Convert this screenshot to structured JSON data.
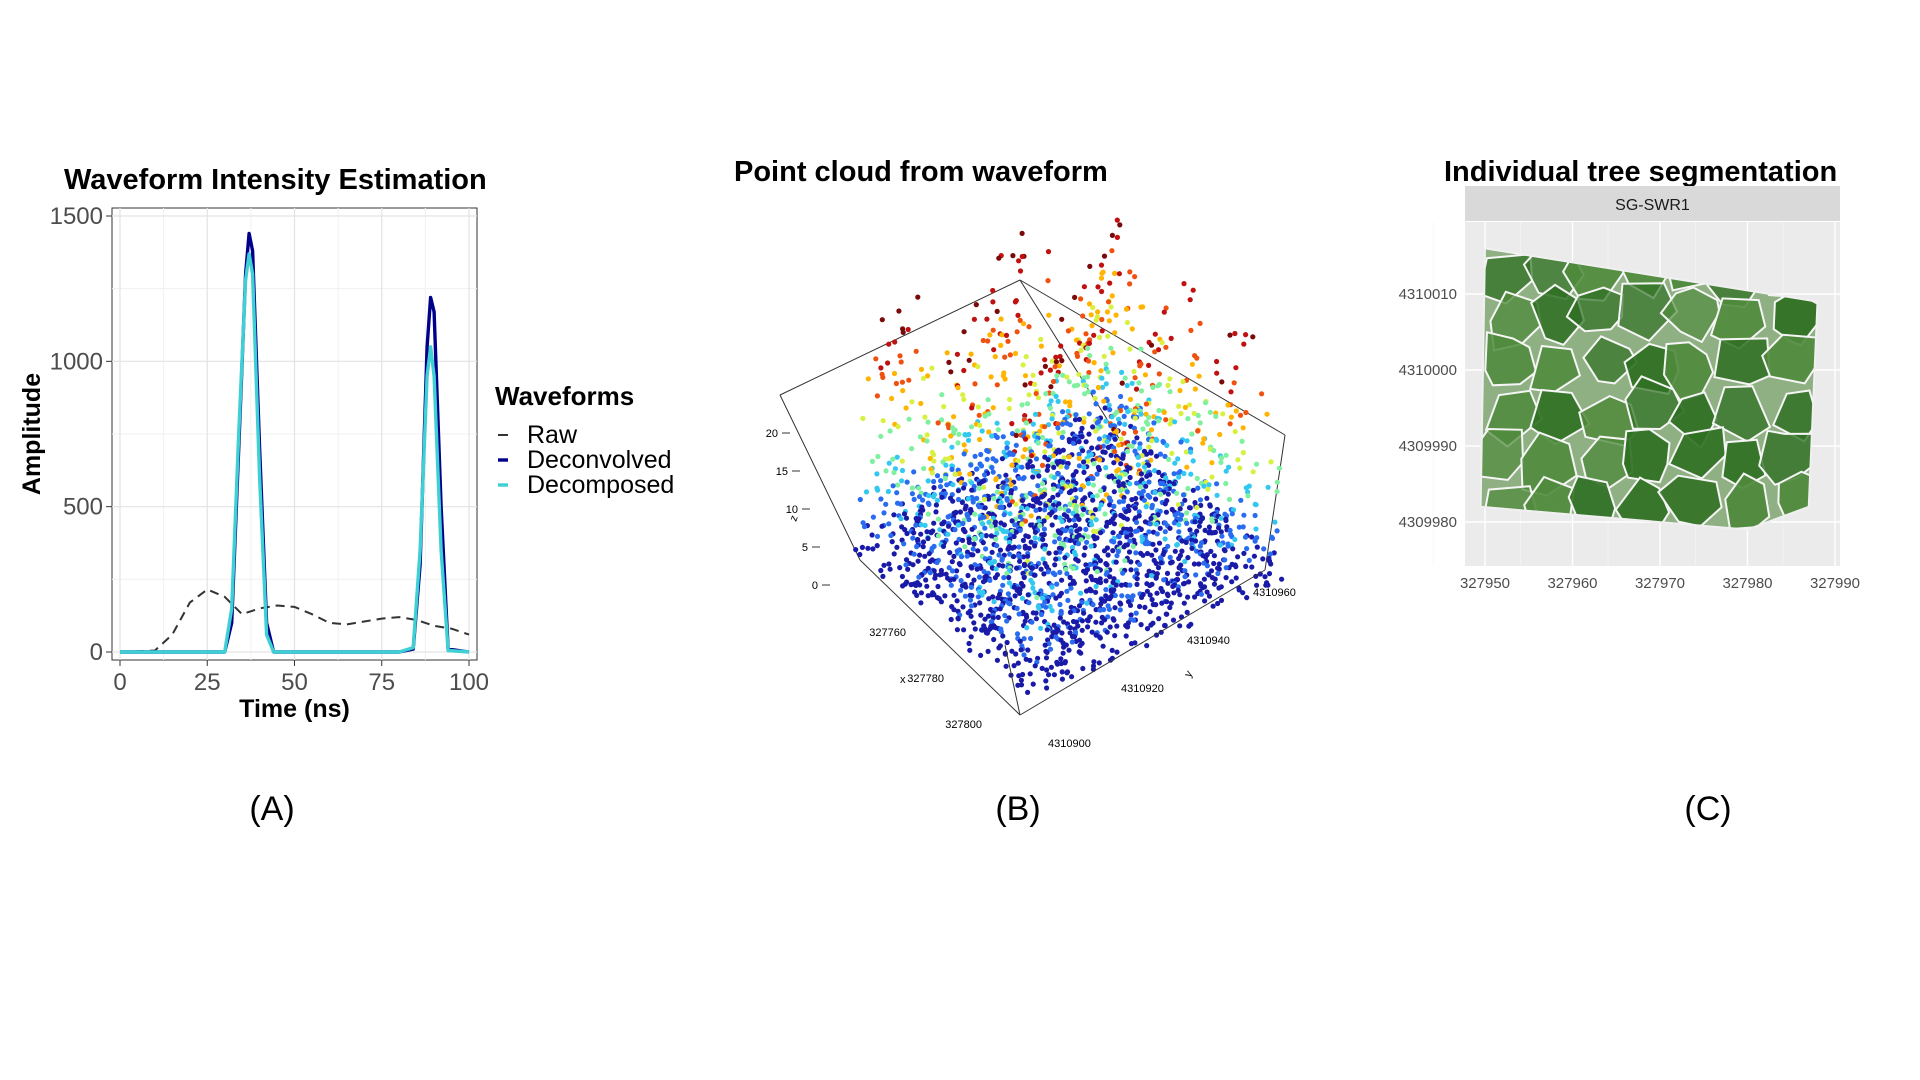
{
  "panels": {
    "a": {
      "caption": "(A)"
    },
    "b": {
      "caption": "(B)"
    },
    "c": {
      "caption": "(C)"
    }
  },
  "chart_data": [
    {
      "type": "line",
      "title": "Waveform Intensity Estimation",
      "xlabel": "Time (ns)",
      "ylabel": "Amplitude",
      "xlim": [
        0,
        100
      ],
      "ylim": [
        0,
        1500
      ],
      "x_ticks": [
        0,
        25,
        50,
        75,
        100
      ],
      "y_ticks": [
        0,
        500,
        1000,
        1500
      ],
      "grid": true,
      "legend": {
        "title": "Waveforms",
        "position": "right"
      },
      "series": [
        {
          "name": "Raw",
          "color": "#333333",
          "style": "dashed",
          "x": [
            0,
            10,
            15,
            20,
            25,
            30,
            35,
            40,
            45,
            50,
            55,
            60,
            65,
            70,
            75,
            80,
            85,
            90,
            95,
            100
          ],
          "y": [
            0,
            5,
            60,
            170,
            215,
            190,
            130,
            150,
            160,
            155,
            130,
            100,
            95,
            105,
            115,
            120,
            110,
            90,
            80,
            60
          ]
        },
        {
          "name": "Deconvolved",
          "color": "#00008b",
          "style": "solid",
          "x": [
            0,
            30,
            32,
            34,
            36,
            37,
            38,
            40,
            42,
            44,
            80,
            84,
            86,
            88,
            89,
            90,
            92,
            94,
            100
          ],
          "y": [
            0,
            0,
            100,
            700,
            1300,
            1440,
            1380,
            700,
            100,
            0,
            0,
            10,
            300,
            1050,
            1220,
            1170,
            500,
            10,
            0
          ]
        },
        {
          "name": "Decomposed",
          "color": "#3fd0d4",
          "style": "solid",
          "x": [
            0,
            30,
            32,
            34,
            36,
            37,
            38,
            40,
            42,
            44,
            80,
            84,
            86,
            88,
            89,
            90,
            92,
            94,
            100
          ],
          "y": [
            0,
            0,
            150,
            750,
            1280,
            1370,
            1300,
            600,
            60,
            0,
            0,
            15,
            350,
            950,
            1050,
            950,
            350,
            5,
            0
          ]
        }
      ]
    },
    {
      "type": "scatter",
      "title": "Point cloud from waveform",
      "x_axis": {
        "label": "x",
        "ticks": [
          327760,
          327780,
          327800
        ]
      },
      "y_axis": {
        "label": "y",
        "ticks": [
          4310900,
          4310920,
          4310940,
          4310960
        ]
      },
      "z_axis": {
        "label": "z",
        "ticks": [
          0,
          5,
          10,
          15,
          20
        ]
      },
      "colormap": [
        "#1a1aa8",
        "#2a6cf0",
        "#33c8f0",
        "#7ef0a0",
        "#d8f040",
        "#ffb400",
        "#f05010",
        "#c01010",
        "#7a0a0a"
      ],
      "note": "3D point cloud colored by height"
    },
    {
      "type": "map",
      "title": "Individual tree segmentation",
      "facet_label": "SG-SWR1",
      "x_ticks": [
        327950,
        327960,
        327970,
        327980,
        327990
      ],
      "y_ticks": [
        4309980,
        4309990,
        4310000,
        4310010
      ],
      "fill_colors": [
        "#8fb083",
        "#4f8a3c",
        "#2e6f22"
      ]
    }
  ]
}
